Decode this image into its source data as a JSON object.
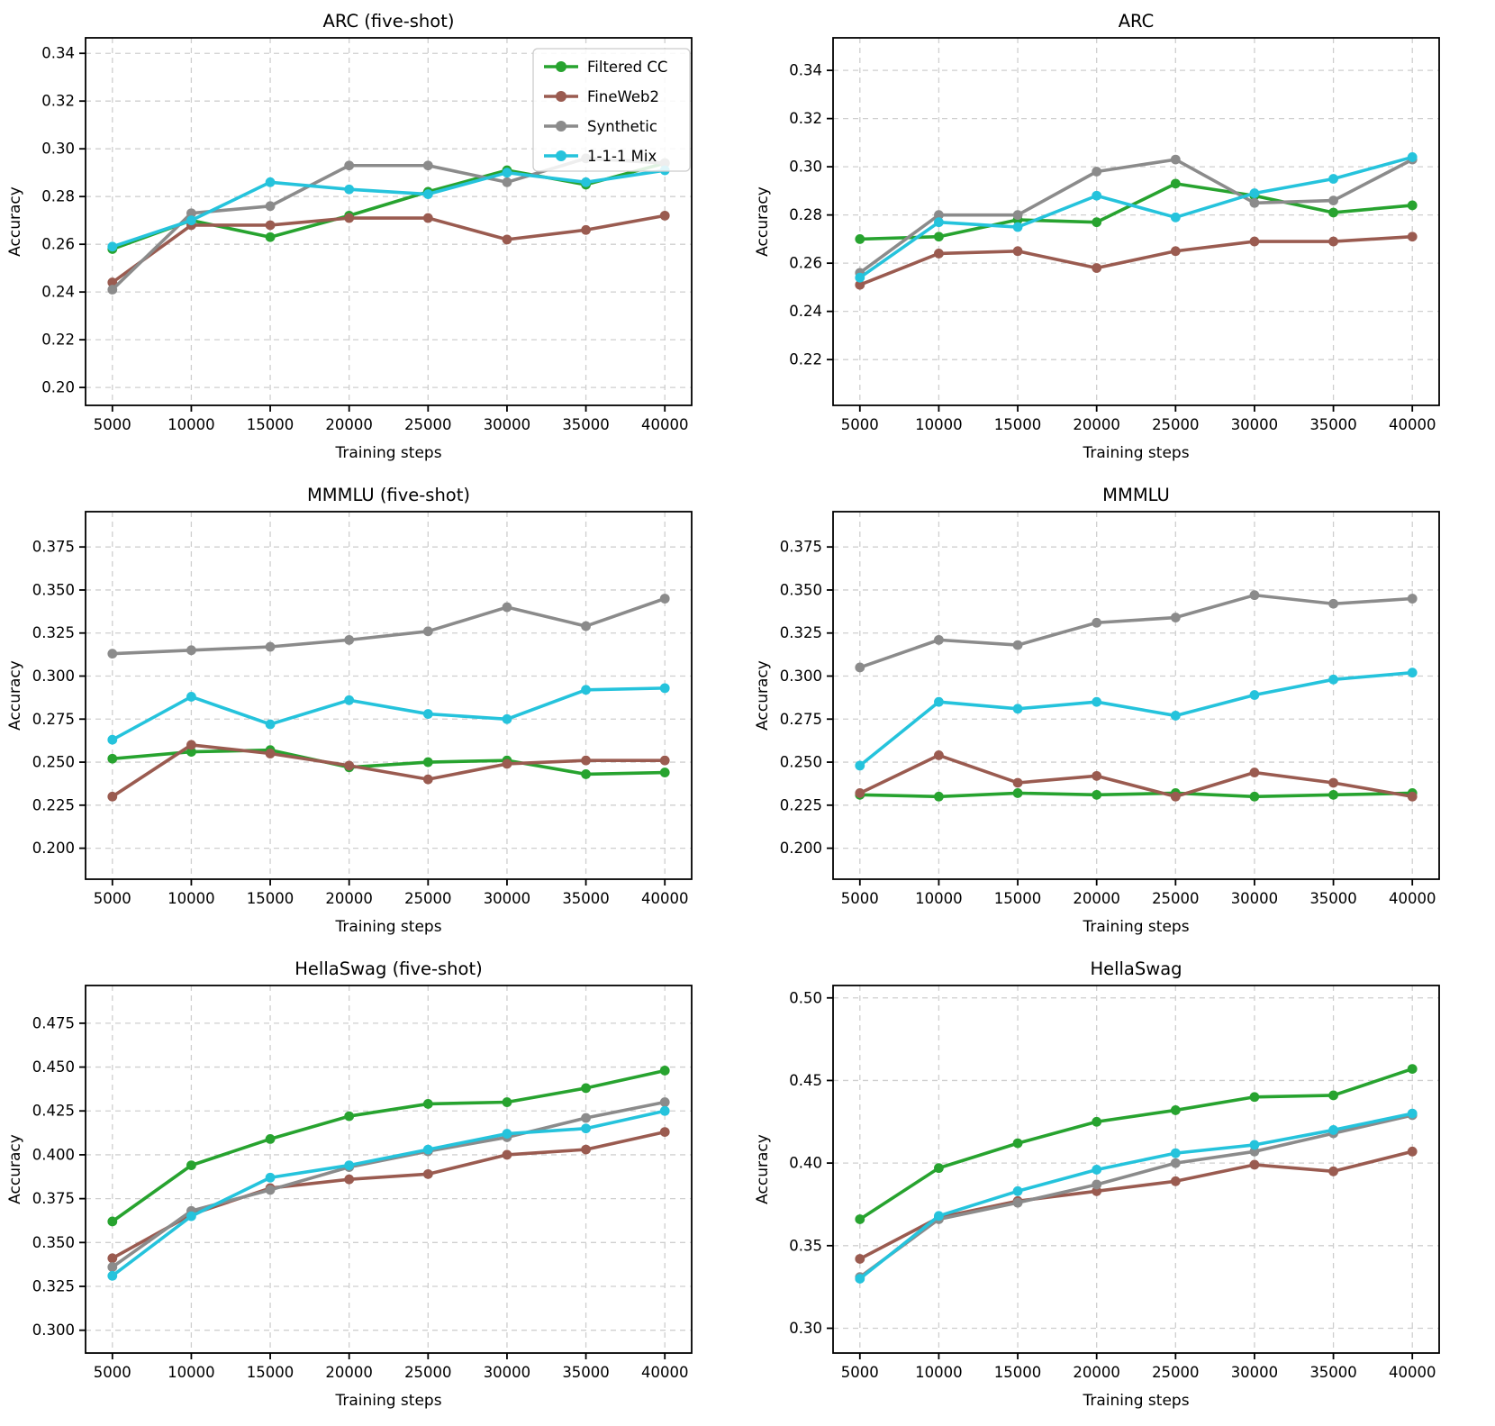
{
  "page": {
    "background": "#ffffff"
  },
  "legend": {
    "position": "upper-right",
    "labels": [
      "Filtered CC",
      "FineWeb2",
      "Synthetic",
      "1-1-1 Mix"
    ]
  },
  "colors": {
    "filtered_cc": "#27a32f",
    "fineweb2": "#9a5b50",
    "synthetic": "#8b8b8b",
    "mix_111": "#25c3dc",
    "grid": "#cfcfcf",
    "spine": "#000000"
  },
  "chart_data": [
    {
      "type": "line",
      "title": "ARC (five-shot)",
      "xlabel": "Training steps",
      "ylabel": "Accuracy",
      "legend": true,
      "grid": true,
      "x": [
        5000,
        10000,
        15000,
        20000,
        25000,
        30000,
        35000,
        40000
      ],
      "xlim": [
        3300,
        41700
      ],
      "ylim": [
        0.1925,
        0.3465
      ],
      "yticks": [
        0.2,
        0.22,
        0.24,
        0.26,
        0.28,
        0.3,
        0.32,
        0.34
      ],
      "ytick_decimals": 2,
      "series": [
        {
          "name": "Filtered CC",
          "color": "#27a32f",
          "values": [
            0.258,
            0.27,
            0.263,
            0.272,
            0.282,
            0.291,
            0.285,
            0.294
          ]
        },
        {
          "name": "FineWeb2",
          "color": "#9a5b50",
          "values": [
            0.244,
            0.268,
            0.268,
            0.271,
            0.271,
            0.262,
            0.266,
            0.272
          ]
        },
        {
          "name": "Synthetic",
          "color": "#8b8b8b",
          "values": [
            0.241,
            0.273,
            0.276,
            0.293,
            0.293,
            0.286,
            0.296,
            0.294
          ]
        },
        {
          "name": "1-1-1 Mix",
          "color": "#25c3dc",
          "values": [
            0.259,
            0.27,
            0.286,
            0.283,
            0.281,
            0.29,
            0.286,
            0.291
          ]
        }
      ]
    },
    {
      "type": "line",
      "title": "ARC",
      "xlabel": "Training steps",
      "ylabel": "Accuracy",
      "legend": false,
      "grid": true,
      "x": [
        5000,
        10000,
        15000,
        20000,
        25000,
        30000,
        35000,
        40000
      ],
      "xlim": [
        3300,
        41700
      ],
      "ylim": [
        0.201,
        0.3535
      ],
      "yticks": [
        0.22,
        0.24,
        0.26,
        0.28,
        0.3,
        0.32,
        0.34
      ],
      "ytick_decimals": 2,
      "series": [
        {
          "name": "Filtered CC",
          "color": "#27a32f",
          "values": [
            0.27,
            0.271,
            0.278,
            0.277,
            0.293,
            0.288,
            0.281,
            0.284
          ]
        },
        {
          "name": "FineWeb2",
          "color": "#9a5b50",
          "values": [
            0.251,
            0.264,
            0.265,
            0.258,
            0.265,
            0.269,
            0.269,
            0.271
          ]
        },
        {
          "name": "Synthetic",
          "color": "#8b8b8b",
          "values": [
            0.256,
            0.28,
            0.28,
            0.298,
            0.303,
            0.285,
            0.286,
            0.303
          ]
        },
        {
          "name": "1-1-1 Mix",
          "color": "#25c3dc",
          "values": [
            0.254,
            0.277,
            0.275,
            0.288,
            0.279,
            0.289,
            0.295,
            0.304
          ]
        }
      ]
    },
    {
      "type": "line",
      "title": "MMMLU (five-shot)",
      "xlabel": "Training steps",
      "ylabel": "Accuracy",
      "legend": false,
      "grid": true,
      "x": [
        5000,
        10000,
        15000,
        20000,
        25000,
        30000,
        35000,
        40000
      ],
      "xlim": [
        3300,
        41700
      ],
      "ylim": [
        0.182,
        0.3955
      ],
      "yticks": [
        0.2,
        0.225,
        0.25,
        0.275,
        0.3,
        0.325,
        0.35,
        0.375
      ],
      "ytick_decimals": 3,
      "series": [
        {
          "name": "Filtered CC",
          "color": "#27a32f",
          "values": [
            0.252,
            0.256,
            0.257,
            0.247,
            0.25,
            0.251,
            0.243,
            0.244
          ]
        },
        {
          "name": "FineWeb2",
          "color": "#9a5b50",
          "values": [
            0.23,
            0.26,
            0.255,
            0.248,
            0.24,
            0.249,
            0.251,
            0.251
          ]
        },
        {
          "name": "Synthetic",
          "color": "#8b8b8b",
          "values": [
            0.313,
            0.315,
            0.317,
            0.321,
            0.326,
            0.34,
            0.329,
            0.345
          ]
        },
        {
          "name": "1-1-1 Mix",
          "color": "#25c3dc",
          "values": [
            0.263,
            0.288,
            0.272,
            0.286,
            0.278,
            0.275,
            0.292,
            0.293
          ]
        }
      ]
    },
    {
      "type": "line",
      "title": "MMMLU",
      "xlabel": "Training steps",
      "ylabel": "Accuracy",
      "legend": false,
      "grid": true,
      "x": [
        5000,
        10000,
        15000,
        20000,
        25000,
        30000,
        35000,
        40000
      ],
      "xlim": [
        3300,
        41700
      ],
      "ylim": [
        0.182,
        0.3955
      ],
      "yticks": [
        0.2,
        0.225,
        0.25,
        0.275,
        0.3,
        0.325,
        0.35,
        0.375
      ],
      "ytick_decimals": 3,
      "series": [
        {
          "name": "Filtered CC",
          "color": "#27a32f",
          "values": [
            0.231,
            0.23,
            0.232,
            0.231,
            0.232,
            0.23,
            0.231,
            0.232
          ]
        },
        {
          "name": "FineWeb2",
          "color": "#9a5b50",
          "values": [
            0.232,
            0.254,
            0.238,
            0.242,
            0.23,
            0.244,
            0.238,
            0.23
          ]
        },
        {
          "name": "Synthetic",
          "color": "#8b8b8b",
          "values": [
            0.305,
            0.321,
            0.318,
            0.331,
            0.334,
            0.347,
            0.342,
            0.345
          ]
        },
        {
          "name": "1-1-1 Mix",
          "color": "#25c3dc",
          "values": [
            0.248,
            0.285,
            0.281,
            0.285,
            0.277,
            0.289,
            0.298,
            0.302
          ]
        }
      ]
    },
    {
      "type": "line",
      "title": "HellaSwag (five-shot)",
      "xlabel": "Training steps",
      "ylabel": "Accuracy",
      "legend": false,
      "grid": true,
      "x": [
        5000,
        10000,
        15000,
        20000,
        25000,
        30000,
        35000,
        40000
      ],
      "xlim": [
        3300,
        41700
      ],
      "ylim": [
        0.287,
        0.4965
      ],
      "yticks": [
        0.3,
        0.325,
        0.35,
        0.375,
        0.4,
        0.425,
        0.45,
        0.475
      ],
      "ytick_decimals": 3,
      "series": [
        {
          "name": "Filtered CC",
          "color": "#27a32f",
          "values": [
            0.362,
            0.394,
            0.409,
            0.422,
            0.429,
            0.43,
            0.438,
            0.448
          ]
        },
        {
          "name": "FineWeb2",
          "color": "#9a5b50",
          "values": [
            0.341,
            0.366,
            0.381,
            0.386,
            0.389,
            0.4,
            0.403,
            0.413
          ]
        },
        {
          "name": "Synthetic",
          "color": "#8b8b8b",
          "values": [
            0.336,
            0.368,
            0.38,
            0.393,
            0.402,
            0.41,
            0.421,
            0.43
          ]
        },
        {
          "name": "1-1-1 Mix",
          "color": "#25c3dc",
          "values": [
            0.331,
            0.365,
            0.387,
            0.394,
            0.403,
            0.412,
            0.415,
            0.425
          ]
        }
      ]
    },
    {
      "type": "line",
      "title": "HellaSwag",
      "xlabel": "Training steps",
      "ylabel": "Accuracy",
      "legend": false,
      "grid": true,
      "x": [
        5000,
        10000,
        15000,
        20000,
        25000,
        30000,
        35000,
        40000
      ],
      "xlim": [
        3300,
        41700
      ],
      "ylim": [
        0.285,
        0.5075
      ],
      "yticks": [
        0.3,
        0.35,
        0.4,
        0.45,
        0.5
      ],
      "ytick_decimals": 2,
      "series": [
        {
          "name": "Filtered CC",
          "color": "#27a32f",
          "values": [
            0.366,
            0.397,
            0.412,
            0.425,
            0.432,
            0.44,
            0.441,
            0.457
          ]
        },
        {
          "name": "FineWeb2",
          "color": "#9a5b50",
          "values": [
            0.342,
            0.367,
            0.377,
            0.383,
            0.389,
            0.399,
            0.395,
            0.407
          ]
        },
        {
          "name": "Synthetic",
          "color": "#8b8b8b",
          "values": [
            0.331,
            0.366,
            0.376,
            0.387,
            0.4,
            0.407,
            0.418,
            0.429
          ]
        },
        {
          "name": "1-1-1 Mix",
          "color": "#25c3dc",
          "values": [
            0.33,
            0.368,
            0.383,
            0.396,
            0.406,
            0.411,
            0.42,
            0.43
          ]
        }
      ]
    }
  ]
}
